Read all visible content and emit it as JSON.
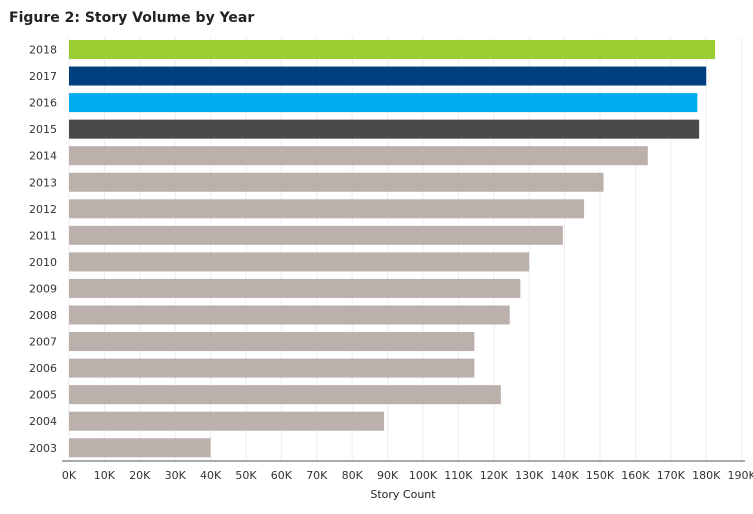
{
  "chart_data": {
    "type": "bar",
    "orientation": "horizontal",
    "title": "Figure 2: Story Volume by Year",
    "xlabel": "Story Count",
    "ylabel": "",
    "xlim": [
      0,
      190000
    ],
    "grid": true,
    "categories": [
      "2018",
      "2017",
      "2016",
      "2015",
      "2014",
      "2013",
      "2012",
      "2011",
      "2010",
      "2009",
      "2008",
      "2007",
      "2006",
      "2005",
      "2004",
      "2003"
    ],
    "values": [
      182500,
      180000,
      177500,
      178000,
      163500,
      151000,
      145500,
      139500,
      130000,
      127500,
      124500,
      114500,
      114500,
      122000,
      89000,
      40000
    ],
    "bar_colors": [
      "#9acd32",
      "#003f7d",
      "#00aeef",
      "#4a4a4a",
      "#bbb0ab",
      "#bbb0ab",
      "#bbb0ab",
      "#bbb0ab",
      "#bbb0ab",
      "#bbb0ab",
      "#bbb0ab",
      "#bbb0ab",
      "#bbb0ab",
      "#bbb0ab",
      "#bbb0ab",
      "#bbb0ab"
    ],
    "x_ticks": [
      0,
      10000,
      20000,
      30000,
      40000,
      50000,
      60000,
      70000,
      80000,
      90000,
      100000,
      110000,
      120000,
      130000,
      140000,
      150000,
      160000,
      170000,
      180000,
      190000
    ],
    "x_tick_labels": [
      "0K",
      "10K",
      "20K",
      "30K",
      "40K",
      "50K",
      "60K",
      "70K",
      "80K",
      "90K",
      "100K",
      "110K",
      "120K",
      "130K",
      "140K",
      "150K",
      "160K",
      "170K",
      "180K",
      "190K"
    ]
  }
}
